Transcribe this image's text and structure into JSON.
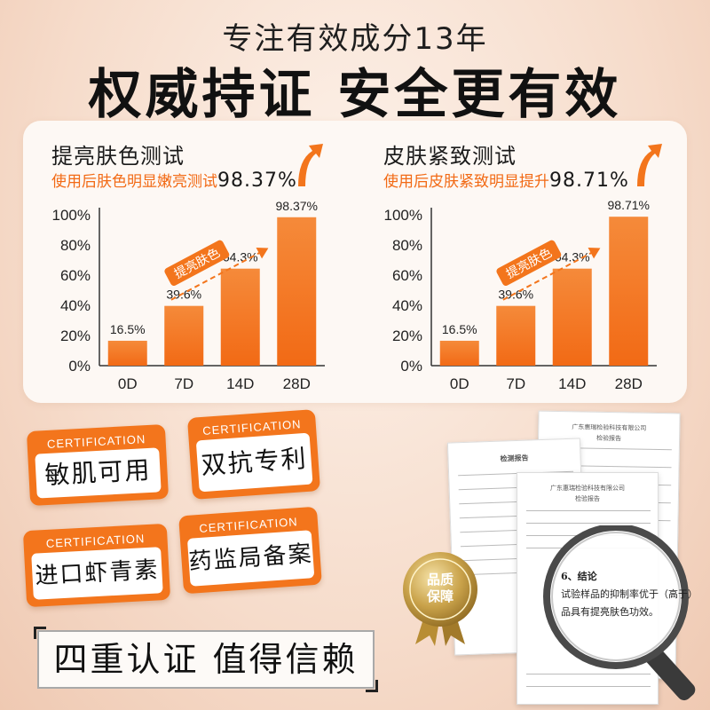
{
  "header": {
    "subtitle": "专注有效成分13年",
    "title": "权威持证 安全更有效"
  },
  "charts": [
    {
      "title": "提亮肤色测试",
      "note": "使用后肤色明显嫩亮测试",
      "note_pct": "98.37%",
      "badge": "提亮肤色"
    },
    {
      "title": "皮肤紧致测试",
      "note": "使用后皮肤紧致明显提升",
      "note_pct": "98.71%",
      "badge": "提亮肤色"
    }
  ],
  "chart_data": [
    {
      "type": "bar",
      "categories": [
        "0D",
        "7D",
        "14D",
        "28D"
      ],
      "values": [
        16.5,
        39.6,
        64.3,
        98.37
      ],
      "value_labels": [
        "16.5%",
        "39.6%",
        "64.3%",
        "98.37%"
      ],
      "yticks": [
        "0%",
        "20%",
        "40%",
        "60%",
        "80%",
        "100%"
      ],
      "ylim": [
        0,
        100
      ],
      "title": "提亮肤色测试",
      "xlabel": "",
      "ylabel": ""
    },
    {
      "type": "bar",
      "categories": [
        "0D",
        "7D",
        "14D",
        "28D"
      ],
      "values": [
        16.5,
        39.6,
        64.3,
        98.71
      ],
      "value_labels": [
        "16.5%",
        "39.6%",
        "64.3%",
        "98.71%"
      ],
      "yticks": [
        "0%",
        "20%",
        "40%",
        "60%",
        "80%",
        "100%"
      ],
      "ylim": [
        0,
        100
      ],
      "title": "皮肤紧致测试",
      "xlabel": "",
      "ylabel": ""
    }
  ],
  "certifications": [
    {
      "label": "CERTIFICATION",
      "text": "敏肌可用"
    },
    {
      "label": "CERTIFICATION",
      "text": "双抗专利"
    },
    {
      "label": "CERTIFICATION",
      "text": "进口虾青素"
    },
    {
      "label": "CERTIFICATION",
      "text": "药监局备案"
    }
  ],
  "banner": "四重认证 值得信赖",
  "documents": {
    "doc1_title": "检测报告",
    "doc2_title": "广东惠瑞检验科技有限公司",
    "doc2_sub": "检验报告",
    "doc3_title": "广东惠瑞检验科技有限公司",
    "doc3_sub": "检验报告",
    "lens_heading": "6、结论",
    "lens_line1": "试验样品的抑制率优于（高于）",
    "lens_line2": "品具有提亮肤色功效。"
  },
  "seal": {
    "line1": "品质",
    "line2": "保障"
  },
  "colors": {
    "accent": "#f3751c",
    "bar_top": "#f58a3a",
    "bar_bottom": "#f26a15"
  }
}
